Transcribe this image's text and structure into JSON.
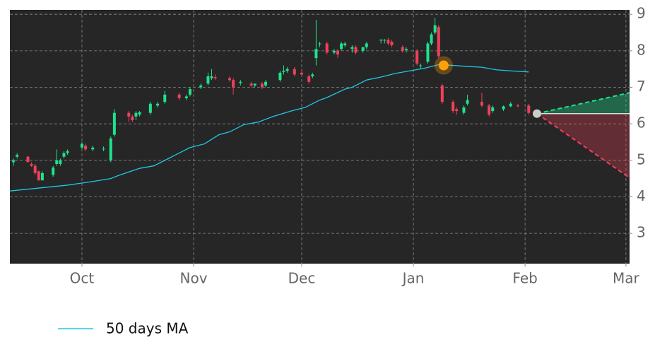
{
  "chart_data": {
    "type": "candlestick",
    "xlim": [
      0,
      172
    ],
    "ylim": [
      2.17,
      9.12
    ],
    "xticks": [
      {
        "value": 20,
        "label": "Oct"
      },
      {
        "value": 51,
        "label": "Nov"
      },
      {
        "value": 81,
        "label": "Dec"
      },
      {
        "value": 112,
        "label": "Jan"
      },
      {
        "value": 143,
        "label": "Feb"
      },
      {
        "value": 171,
        "label": "Mar"
      }
    ],
    "yticks": [
      3,
      4,
      5,
      6,
      7,
      8,
      9
    ],
    "grid": true,
    "up_color": "#1de38d",
    "down_color": "#f0405a",
    "candles": {
      "x": [
        1,
        2,
        5,
        6,
        7,
        8,
        9,
        12,
        13,
        14,
        15,
        16,
        20,
        21,
        23,
        26,
        28,
        29,
        33,
        34,
        35,
        36,
        39,
        41,
        43,
        47,
        49,
        50,
        53,
        55,
        56,
        57,
        61,
        62,
        64,
        67,
        68,
        70,
        71,
        75,
        76,
        77,
        79,
        81,
        83,
        84,
        85,
        86,
        88,
        90,
        91,
        92,
        93,
        95,
        96,
        98,
        99,
        103,
        104,
        105,
        106,
        109,
        110,
        113,
        114,
        116,
        117,
        118,
        119,
        120,
        123,
        124,
        126,
        127,
        131,
        133,
        134,
        137,
        139,
        141,
        144
      ],
      "open": [
        4.95,
        5.1,
        5.1,
        4.9,
        4.85,
        4.7,
        4.45,
        4.6,
        4.9,
        4.9,
        5.1,
        5.2,
        5.35,
        5.4,
        5.3,
        5.3,
        5.0,
        5.7,
        6.3,
        6.2,
        6.2,
        6.25,
        6.3,
        6.5,
        6.6,
        6.8,
        6.7,
        6.8,
        7.0,
        7.1,
        7.25,
        7.28,
        7.25,
        7.2,
        7.12,
        7.1,
        7.05,
        7.1,
        7.05,
        7.2,
        7.42,
        7.45,
        7.5,
        7.4,
        7.3,
        7.3,
        7.8,
        8.18,
        8.2,
        7.95,
        8.0,
        8.05,
        8.15,
        8.05,
        8.1,
        8.0,
        8.1,
        8.28,
        8.28,
        8.3,
        8.25,
        8.1,
        8.02,
        8.0,
        7.6,
        7.7,
        8.2,
        8.5,
        8.65,
        7.05,
        6.6,
        6.4,
        6.3,
        6.55,
        6.6,
        6.5,
        6.35,
        6.4,
        6.48,
        6.5,
        6.5
      ],
      "high": [
        5.05,
        5.2,
        5.12,
        4.95,
        4.9,
        4.72,
        4.7,
        4.85,
        5.3,
        5.05,
        5.25,
        5.3,
        5.5,
        5.45,
        5.4,
        5.38,
        5.65,
        6.4,
        6.35,
        6.25,
        6.35,
        6.35,
        6.6,
        6.6,
        6.9,
        6.85,
        6.8,
        7.0,
        7.1,
        7.4,
        7.5,
        7.35,
        7.3,
        7.25,
        7.2,
        7.15,
        7.1,
        7.15,
        7.2,
        7.45,
        7.6,
        7.55,
        7.55,
        7.5,
        7.35,
        7.4,
        8.85,
        8.25,
        8.25,
        8.05,
        8.05,
        8.25,
        8.25,
        8.15,
        8.15,
        8.1,
        8.25,
        8.32,
        8.32,
        8.35,
        8.3,
        8.15,
        8.1,
        8.05,
        7.65,
        8.25,
        8.5,
        8.9,
        8.7,
        7.1,
        6.65,
        6.45,
        6.5,
        6.8,
        6.85,
        6.55,
        6.5,
        6.5,
        6.6,
        6.55,
        6.55
      ],
      "low": [
        4.85,
        5.05,
        4.95,
        4.82,
        4.6,
        4.45,
        4.45,
        4.55,
        4.85,
        4.85,
        5.05,
        5.15,
        5.3,
        5.25,
        5.25,
        5.25,
        4.95,
        5.65,
        6.05,
        6.05,
        6.1,
        6.2,
        6.25,
        6.45,
        6.55,
        6.65,
        6.65,
        6.75,
        6.95,
        7.05,
        7.2,
        7.2,
        7.15,
        6.8,
        7.05,
        7.0,
        7.0,
        6.95,
        7.0,
        7.15,
        7.35,
        7.4,
        7.3,
        7.3,
        7.1,
        7.25,
        7.6,
        8.1,
        7.9,
        7.9,
        7.8,
        8.0,
        8.1,
        7.95,
        7.9,
        7.95,
        8.05,
        8.2,
        8.2,
        8.15,
        8.1,
        7.95,
        7.95,
        7.6,
        7.5,
        7.65,
        8.15,
        8.45,
        7.8,
        6.55,
        6.3,
        6.25,
        6.25,
        6.5,
        6.45,
        6.2,
        6.3,
        6.35,
        6.45,
        6.45,
        6.25
      ],
      "close": [
        5.0,
        5.15,
        4.95,
        4.85,
        4.65,
        4.45,
        4.65,
        4.8,
        5.0,
        5.0,
        5.2,
        5.25,
        5.45,
        5.3,
        5.35,
        5.32,
        5.6,
        6.3,
        6.2,
        6.1,
        6.3,
        6.32,
        6.55,
        6.55,
        6.8,
        6.7,
        6.75,
        6.95,
        7.05,
        7.3,
        7.3,
        7.25,
        7.2,
        7.0,
        7.15,
        7.05,
        7.1,
        7.0,
        7.15,
        7.4,
        7.45,
        7.5,
        7.35,
        7.35,
        7.15,
        7.35,
        8.05,
        8.2,
        7.95,
        8.0,
        7.9,
        8.2,
        8.2,
        8.1,
        7.95,
        8.1,
        8.2,
        8.3,
        8.3,
        8.2,
        8.15,
        8.0,
        8.05,
        7.65,
        7.6,
        8.2,
        8.45,
        8.7,
        7.85,
        6.6,
        6.35,
        6.35,
        6.45,
        6.65,
        6.5,
        6.25,
        6.45,
        6.48,
        6.55,
        6.48,
        6.3
      ]
    },
    "series": [
      {
        "name": "50 days MA",
        "color": "#1ec8e6",
        "x": [
          0,
          9,
          16,
          23,
          28,
          30,
          36,
          40,
          44,
          50,
          54,
          58,
          61,
          65,
          69,
          73,
          78,
          82,
          86,
          88,
          93,
          95,
          99,
          103,
          107,
          111,
          115,
          119,
          123,
          127,
          131,
          135,
          139,
          144
        ],
        "values": [
          4.16,
          4.25,
          4.32,
          4.42,
          4.5,
          4.58,
          4.78,
          4.85,
          5.05,
          5.35,
          5.45,
          5.7,
          5.78,
          5.98,
          6.05,
          6.2,
          6.35,
          6.45,
          6.65,
          6.72,
          6.95,
          7.0,
          7.2,
          7.28,
          7.38,
          7.45,
          7.52,
          7.62,
          7.6,
          7.57,
          7.55,
          7.48,
          7.45,
          7.42
        ]
      }
    ],
    "highlight": {
      "x": 120.4,
      "y": 7.6,
      "color": "#ff9f0a"
    },
    "forecast": {
      "x": [
        146.3,
        172
      ],
      "start": 6.28,
      "upper": 6.85,
      "lower": 4.52,
      "up_color": "#1de38d",
      "down_color": "#f0405a"
    }
  }
}
